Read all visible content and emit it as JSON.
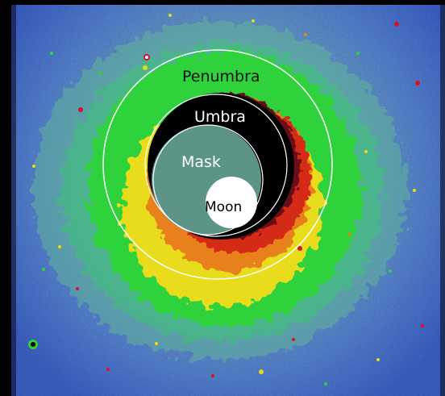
{
  "image": {
    "labels": {
      "penumbra": "Penumbra",
      "umbra": "Umbra",
      "mask": "Mask",
      "moon": "Moon"
    },
    "colors": {
      "background": "#000000",
      "sky_outer": "#4d72c9",
      "sky_mid": "#6fa8b0",
      "halo_green": "#2fd23a",
      "halo_yellow": "#e8dc1a",
      "halo_orange": "#e0701a",
      "halo_red": "#c8121e",
      "umbra_black": "#000000",
      "mask_teal": "#5c9488",
      "moon_white": "#ffffff",
      "circle_outline": "#ffffff"
    }
  }
}
